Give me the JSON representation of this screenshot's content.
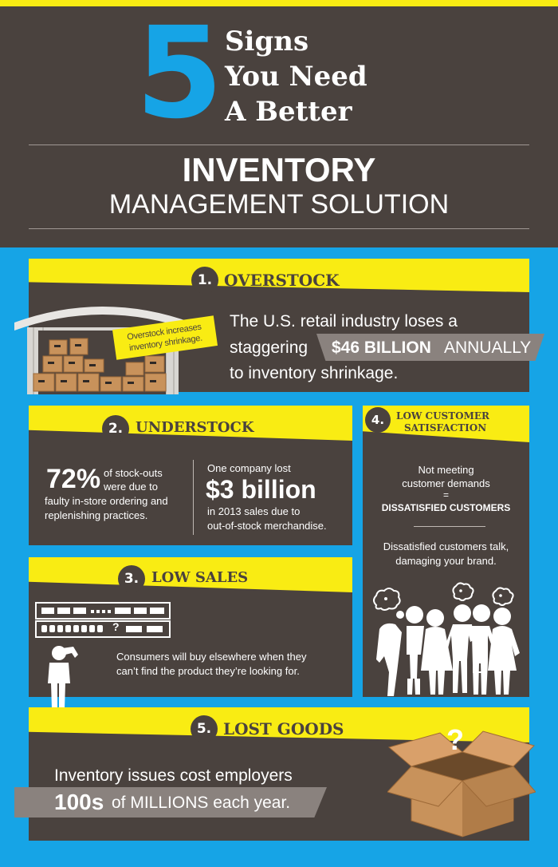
{
  "header": {
    "number": "5",
    "line1": "Signs",
    "line2": "You Need",
    "line3": "A Better",
    "title": "INVENTORY",
    "subtitle": "MANAGEMENT SOLUTION"
  },
  "s1": {
    "num": "1.",
    "title": "OVERSTOCK",
    "tag_l1": "Overstock increases",
    "tag_l2": "inventory shrinkage.",
    "t1": "The U.S. retail industry loses a",
    "t2": "staggering",
    "amount": "$46 BILLION",
    "annual": "ANNUALLY",
    "t3": "to inventory shrinkage."
  },
  "s2": {
    "num": "2.",
    "title": "UNDERSTOCK",
    "pct": "72%",
    "p1": "of stock-outs",
    "p2": "were due to",
    "p3": "faulty in-store ordering and",
    "p4": "replenishing practices.",
    "c1": "One company lost",
    "big": "$3 billion",
    "c2": "in 2013 sales due to",
    "c3": "out-of-stock merchandise."
  },
  "s3": {
    "num": "3.",
    "title": "LOW SALES",
    "q": "?",
    "t1": "Consumers will buy elsewhere when they",
    "t2": "can’t find the product they’re looking for."
  },
  "s4": {
    "num": "4.",
    "title1": "LOW CUSTOMER",
    "title2": "SATISFACTION",
    "l1": "Not meeting",
    "l2": "customer demands",
    "eq": "=",
    "l3": "DISSATISFIED CUSTOMERS",
    "l4": "Dissatisfied customers talk,",
    "l5": "damaging your brand."
  },
  "s5": {
    "num": "5.",
    "title": "LOST GOODS",
    "t1": "Inventory issues cost employers",
    "big": "100s",
    "t2": "of MILLIONS each year.",
    "q": "?"
  },
  "colors": {
    "brown": "#4a423e",
    "yellow": "#f9ec13",
    "blue": "#16a4e6",
    "grey": "#8a827e"
  }
}
